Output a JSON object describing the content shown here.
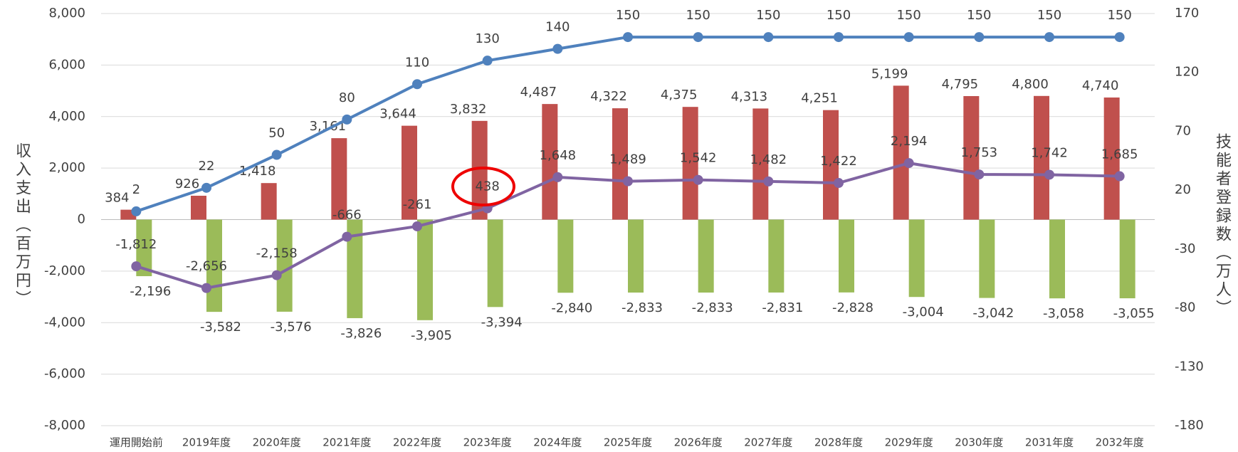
{
  "chart_data": {
    "type": "bar-line",
    "ylabel": "収入支出（百万円）",
    "y2label": "技能者登録数（万人）",
    "categories": [
      "運用開始前",
      "2019年度",
      "2020年度",
      "2021年度",
      "2022年度",
      "2023年度",
      "2024年度",
      "2025年度",
      "2026年度",
      "2027年度",
      "2028年度",
      "2029年度",
      "2030年度",
      "2031年度",
      "2032年度"
    ],
    "series": [
      {
        "type": "bar",
        "color": "#c0504d",
        "values": [
          384,
          926,
          1418,
          3161,
          3644,
          3832,
          4487,
          4322,
          4375,
          4313,
          4251,
          5199,
          4795,
          4800,
          4740
        ],
        "value_labels": [
          "384",
          "926",
          "1,418",
          "3,161",
          "3,644",
          "3,832",
          "4,487",
          "4,322",
          "4,375",
          "4,313",
          "4,251",
          "5,199",
          "4,795",
          "4,800",
          "4,740"
        ]
      },
      {
        "type": "bar",
        "color": "#9bbb59",
        "values": [
          -2196,
          -3582,
          -3576,
          -3826,
          -3905,
          -3394,
          -2840,
          -2833,
          -2833,
          -2831,
          -2828,
          -3004,
          -3042,
          -3058,
          -3055
        ],
        "value_labels": [
          "-2,196",
          "-3,582",
          "-3,576",
          "-3,826",
          "-3,905",
          "-3,394",
          "-2,840",
          "-2,833",
          "-2,833",
          "-2,831",
          "-2,828",
          "-3,004",
          "-3,042",
          "-3,058",
          "-3,055"
        ]
      },
      {
        "type": "line",
        "color": "#8064a2",
        "values": [
          -1812,
          -2656,
          -2158,
          -666,
          -261,
          438,
          1648,
          1489,
          1542,
          1482,
          1422,
          2194,
          1753,
          1742,
          1685
        ],
        "value_labels": [
          "-1,812",
          "-2,656",
          "-2,158",
          "-666",
          "-261",
          "438",
          "1,648",
          "1,489",
          "1,542",
          "1,482",
          "1,422",
          "2,194",
          "1,753",
          "1,742",
          "1,685"
        ]
      },
      {
        "type": "line",
        "axis": "y2",
        "color": "#4f81bd",
        "values": [
          2,
          22,
          50,
          80,
          110,
          130,
          140,
          150,
          150,
          150,
          150,
          150,
          150,
          150,
          150
        ]
      }
    ],
    "ylim": [
      -8000,
      8000
    ],
    "yticks": [
      {
        "value": -8000,
        "label": "-8,000"
      },
      {
        "value": -6000,
        "label": "-6,000"
      },
      {
        "value": -4000,
        "label": "-4,000"
      },
      {
        "value": -2000,
        "label": "-2,000"
      },
      0,
      {
        "value": 2000,
        "label": "2,000"
      },
      {
        "value": 4000,
        "label": "4,000"
      },
      {
        "value": 6000,
        "label": "6,000"
      },
      {
        "value": 8000,
        "label": "8,000"
      }
    ],
    "y2lim": [
      -180,
      170
    ],
    "y2ticks": [
      -180,
      -130,
      -80,
      -30,
      20,
      70,
      120,
      170
    ],
    "grid": true
  }
}
